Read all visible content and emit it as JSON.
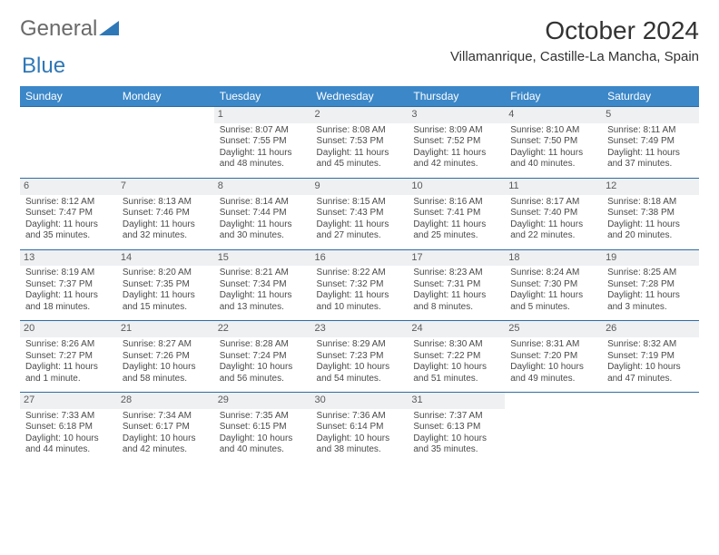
{
  "brand": {
    "part1": "General",
    "part2": "Blue"
  },
  "title": "October 2024",
  "location": "Villamanrique, Castille-La Mancha, Spain",
  "colors": {
    "header_bg": "#3b87c8",
    "header_text": "#ffffff",
    "daynum_bg": "#eef0f2",
    "row_border": "#2f6ca3",
    "brand_gray": "#6a6a6a",
    "brand_blue": "#2f78b7"
  },
  "dayHeaders": [
    "Sunday",
    "Monday",
    "Tuesday",
    "Wednesday",
    "Thursday",
    "Friday",
    "Saturday"
  ],
  "weeks": [
    [
      {
        "n": ""
      },
      {
        "n": ""
      },
      {
        "n": "1",
        "sr": "Sunrise: 8:07 AM",
        "ss": "Sunset: 7:55 PM",
        "d1": "Daylight: 11 hours",
        "d2": "and 48 minutes."
      },
      {
        "n": "2",
        "sr": "Sunrise: 8:08 AM",
        "ss": "Sunset: 7:53 PM",
        "d1": "Daylight: 11 hours",
        "d2": "and 45 minutes."
      },
      {
        "n": "3",
        "sr": "Sunrise: 8:09 AM",
        "ss": "Sunset: 7:52 PM",
        "d1": "Daylight: 11 hours",
        "d2": "and 42 minutes."
      },
      {
        "n": "4",
        "sr": "Sunrise: 8:10 AM",
        "ss": "Sunset: 7:50 PM",
        "d1": "Daylight: 11 hours",
        "d2": "and 40 minutes."
      },
      {
        "n": "5",
        "sr": "Sunrise: 8:11 AM",
        "ss": "Sunset: 7:49 PM",
        "d1": "Daylight: 11 hours",
        "d2": "and 37 minutes."
      }
    ],
    [
      {
        "n": "6",
        "sr": "Sunrise: 8:12 AM",
        "ss": "Sunset: 7:47 PM",
        "d1": "Daylight: 11 hours",
        "d2": "and 35 minutes."
      },
      {
        "n": "7",
        "sr": "Sunrise: 8:13 AM",
        "ss": "Sunset: 7:46 PM",
        "d1": "Daylight: 11 hours",
        "d2": "and 32 minutes."
      },
      {
        "n": "8",
        "sr": "Sunrise: 8:14 AM",
        "ss": "Sunset: 7:44 PM",
        "d1": "Daylight: 11 hours",
        "d2": "and 30 minutes."
      },
      {
        "n": "9",
        "sr": "Sunrise: 8:15 AM",
        "ss": "Sunset: 7:43 PM",
        "d1": "Daylight: 11 hours",
        "d2": "and 27 minutes."
      },
      {
        "n": "10",
        "sr": "Sunrise: 8:16 AM",
        "ss": "Sunset: 7:41 PM",
        "d1": "Daylight: 11 hours",
        "d2": "and 25 minutes."
      },
      {
        "n": "11",
        "sr": "Sunrise: 8:17 AM",
        "ss": "Sunset: 7:40 PM",
        "d1": "Daylight: 11 hours",
        "d2": "and 22 minutes."
      },
      {
        "n": "12",
        "sr": "Sunrise: 8:18 AM",
        "ss": "Sunset: 7:38 PM",
        "d1": "Daylight: 11 hours",
        "d2": "and 20 minutes."
      }
    ],
    [
      {
        "n": "13",
        "sr": "Sunrise: 8:19 AM",
        "ss": "Sunset: 7:37 PM",
        "d1": "Daylight: 11 hours",
        "d2": "and 18 minutes."
      },
      {
        "n": "14",
        "sr": "Sunrise: 8:20 AM",
        "ss": "Sunset: 7:35 PM",
        "d1": "Daylight: 11 hours",
        "d2": "and 15 minutes."
      },
      {
        "n": "15",
        "sr": "Sunrise: 8:21 AM",
        "ss": "Sunset: 7:34 PM",
        "d1": "Daylight: 11 hours",
        "d2": "and 13 minutes."
      },
      {
        "n": "16",
        "sr": "Sunrise: 8:22 AM",
        "ss": "Sunset: 7:32 PM",
        "d1": "Daylight: 11 hours",
        "d2": "and 10 minutes."
      },
      {
        "n": "17",
        "sr": "Sunrise: 8:23 AM",
        "ss": "Sunset: 7:31 PM",
        "d1": "Daylight: 11 hours",
        "d2": "and 8 minutes."
      },
      {
        "n": "18",
        "sr": "Sunrise: 8:24 AM",
        "ss": "Sunset: 7:30 PM",
        "d1": "Daylight: 11 hours",
        "d2": "and 5 minutes."
      },
      {
        "n": "19",
        "sr": "Sunrise: 8:25 AM",
        "ss": "Sunset: 7:28 PM",
        "d1": "Daylight: 11 hours",
        "d2": "and 3 minutes."
      }
    ],
    [
      {
        "n": "20",
        "sr": "Sunrise: 8:26 AM",
        "ss": "Sunset: 7:27 PM",
        "d1": "Daylight: 11 hours",
        "d2": "and 1 minute."
      },
      {
        "n": "21",
        "sr": "Sunrise: 8:27 AM",
        "ss": "Sunset: 7:26 PM",
        "d1": "Daylight: 10 hours",
        "d2": "and 58 minutes."
      },
      {
        "n": "22",
        "sr": "Sunrise: 8:28 AM",
        "ss": "Sunset: 7:24 PM",
        "d1": "Daylight: 10 hours",
        "d2": "and 56 minutes."
      },
      {
        "n": "23",
        "sr": "Sunrise: 8:29 AM",
        "ss": "Sunset: 7:23 PM",
        "d1": "Daylight: 10 hours",
        "d2": "and 54 minutes."
      },
      {
        "n": "24",
        "sr": "Sunrise: 8:30 AM",
        "ss": "Sunset: 7:22 PM",
        "d1": "Daylight: 10 hours",
        "d2": "and 51 minutes."
      },
      {
        "n": "25",
        "sr": "Sunrise: 8:31 AM",
        "ss": "Sunset: 7:20 PM",
        "d1": "Daylight: 10 hours",
        "d2": "and 49 minutes."
      },
      {
        "n": "26",
        "sr": "Sunrise: 8:32 AM",
        "ss": "Sunset: 7:19 PM",
        "d1": "Daylight: 10 hours",
        "d2": "and 47 minutes."
      }
    ],
    [
      {
        "n": "27",
        "sr": "Sunrise: 7:33 AM",
        "ss": "Sunset: 6:18 PM",
        "d1": "Daylight: 10 hours",
        "d2": "and 44 minutes."
      },
      {
        "n": "28",
        "sr": "Sunrise: 7:34 AM",
        "ss": "Sunset: 6:17 PM",
        "d1": "Daylight: 10 hours",
        "d2": "and 42 minutes."
      },
      {
        "n": "29",
        "sr": "Sunrise: 7:35 AM",
        "ss": "Sunset: 6:15 PM",
        "d1": "Daylight: 10 hours",
        "d2": "and 40 minutes."
      },
      {
        "n": "30",
        "sr": "Sunrise: 7:36 AM",
        "ss": "Sunset: 6:14 PM",
        "d1": "Daylight: 10 hours",
        "d2": "and 38 minutes."
      },
      {
        "n": "31",
        "sr": "Sunrise: 7:37 AM",
        "ss": "Sunset: 6:13 PM",
        "d1": "Daylight: 10 hours",
        "d2": "and 35 minutes."
      },
      {
        "n": ""
      },
      {
        "n": ""
      }
    ]
  ]
}
